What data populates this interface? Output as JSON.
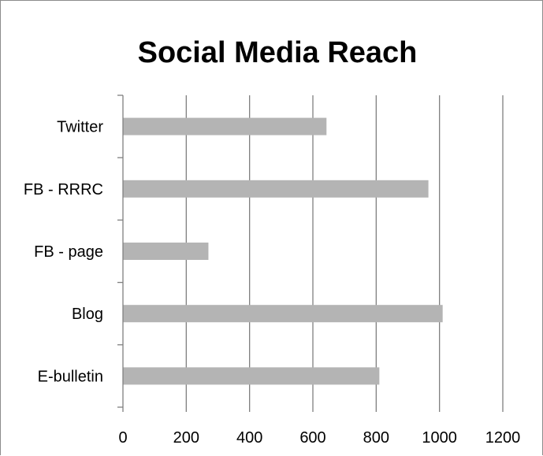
{
  "chart_data": {
    "type": "bar",
    "orientation": "horizontal",
    "title": "Social Media Reach",
    "xlabel": "",
    "ylabel": "",
    "categories": [
      "E-bulletin",
      "Blog",
      "FB - page",
      "FB - RRRC",
      "Twitter"
    ],
    "values": [
      810,
      1010,
      270,
      965,
      643
    ],
    "xlim": [
      0,
      1200
    ],
    "xticks": [
      "0",
      "200",
      "400",
      "600",
      "800",
      "1000",
      "1200"
    ],
    "grid": "vertical",
    "legend": "none",
    "bar_color": "#b4b4b4",
    "grid_color": "#7f7f7f",
    "axis_color": "#7f7f7f"
  }
}
